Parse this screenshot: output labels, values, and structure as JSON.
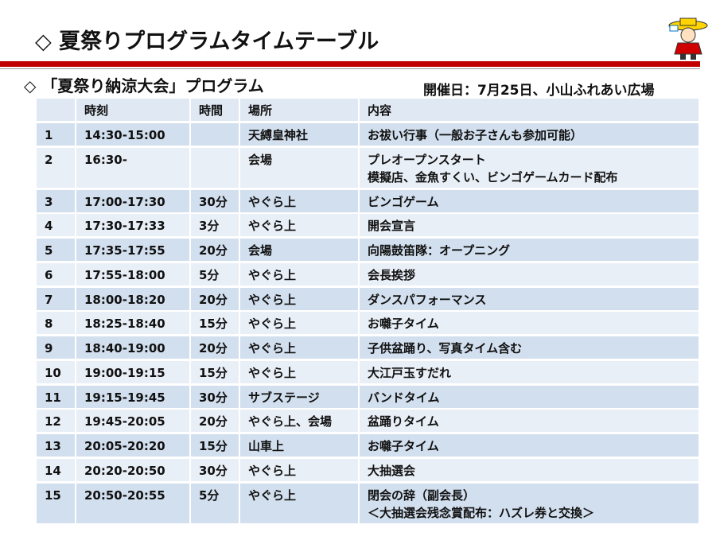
{
  "header": {
    "title": "◇ 夏祭りプログラムタイムテーブル",
    "subtitle": "◇ 「夏祭り納涼大会」プログラム",
    "date": "開催日：7月25日、小山ふれあい広場"
  },
  "table": {
    "columns": [
      null,
      "時刻",
      "時間",
      "場所",
      "内容"
    ],
    "rows": [
      [
        "1",
        "14:30-15:00",
        null,
        "天縛皇神社",
        [
          "お祓い行事（一般お子さんも参加可能）"
        ]
      ],
      [
        "2",
        "16:30-",
        null,
        "会場",
        [
          "プレオープンスタート",
          "模擬店、金魚すくい、ビンゴゲームカード配布"
        ]
      ],
      [
        "3",
        "17:00-17:30",
        "30分",
        "やぐら上",
        [
          "ビンゴゲーム"
        ]
      ],
      [
        "4",
        "17:30-17:33",
        "3分",
        "やぐら上",
        [
          "開会宣言"
        ]
      ],
      [
        "5",
        "17:35-17:55",
        "20分",
        "会場",
        [
          "向陽鼓笛隊：オープニング"
        ]
      ],
      [
        "6",
        "17:55-18:00",
        "5分",
        "やぐら上",
        [
          "会長挨拶"
        ]
      ],
      [
        "7",
        "18:00-18:20",
        "20分",
        "やぐら上",
        [
          "ダンスパフォーマンス"
        ]
      ],
      [
        "8",
        "18:25-18:40",
        "15分",
        "やぐら上",
        [
          "お囃子タイム"
        ]
      ],
      [
        "9",
        "18:40-19:00",
        "20分",
        "やぐら上",
        [
          "子供盆踊り、写真タイム含む"
        ]
      ],
      [
        "10",
        "19:00-19:15",
        "15分",
        "やぐら上",
        [
          "大江戸玉すだれ"
        ]
      ],
      [
        "11",
        "19:15-19:45",
        "30分",
        "サブステージ",
        [
          "バンドタイム"
        ]
      ],
      [
        "12",
        "19:45-20:05",
        "20分",
        "やぐら上、会場",
        [
          "盆踊りタイム"
        ]
      ],
      [
        "13",
        "20:05-20:20",
        "15分",
        "山車上",
        [
          "お囃子タイム"
        ]
      ],
      [
        "14",
        "20:20-20:50",
        "30分",
        "やぐら上",
        [
          "大抽選会"
        ]
      ],
      [
        "15",
        "20:50-20:55",
        "5分",
        "やぐら上",
        [
          "閉会の辞（副会長）",
          "＜大抽選会残念賞配布：ハズレ券と交換＞"
        ]
      ]
    ]
  }
}
